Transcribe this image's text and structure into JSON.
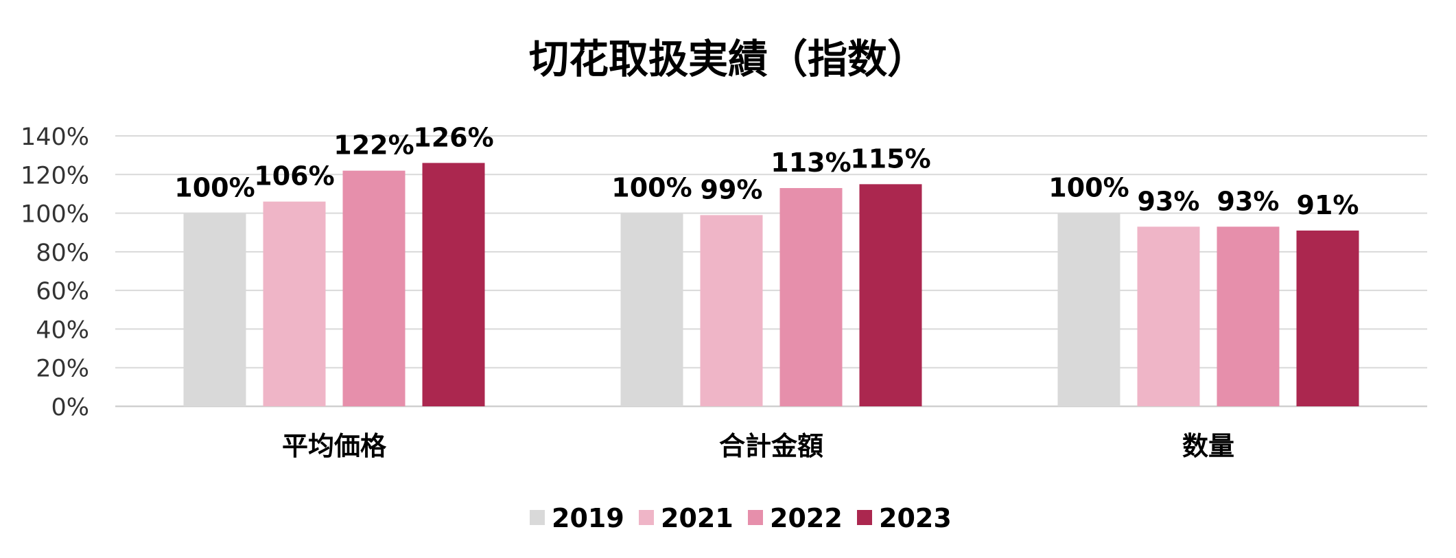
{
  "chart_data": {
    "type": "bar",
    "title": "切花取扱実績（指数）",
    "xlabel": "",
    "ylabel": "",
    "categories": [
      "平均価格",
      "合計金額",
      "数量"
    ],
    "series": [
      {
        "name": "2019",
        "values": [
          100,
          100,
          100
        ],
        "labels": [
          "100%",
          "100%",
          "100%"
        ],
        "color": "#d9d9d9"
      },
      {
        "name": "2021",
        "values": [
          106,
          99,
          93
        ],
        "labels": [
          "106%",
          "99%",
          "93%"
        ],
        "color": "#efb5c7"
      },
      {
        "name": "2022",
        "values": [
          122,
          113,
          93
        ],
        "labels": [
          "122%",
          "113%",
          "93%"
        ],
        "color": "#e68fab"
      },
      {
        "name": "2023",
        "values": [
          126,
          115,
          91
        ],
        "labels": [
          "126%",
          "115%",
          "91%"
        ],
        "color": "#ab274f"
      }
    ],
    "ylim": [
      0,
      140
    ],
    "yticks": [
      0,
      20,
      40,
      60,
      80,
      100,
      120,
      140
    ],
    "ytick_labels": [
      "0%",
      "20%",
      "40%",
      "60%",
      "80%",
      "100%",
      "120%",
      "140%"
    ],
    "grid": true,
    "legend_position": "bottom"
  }
}
